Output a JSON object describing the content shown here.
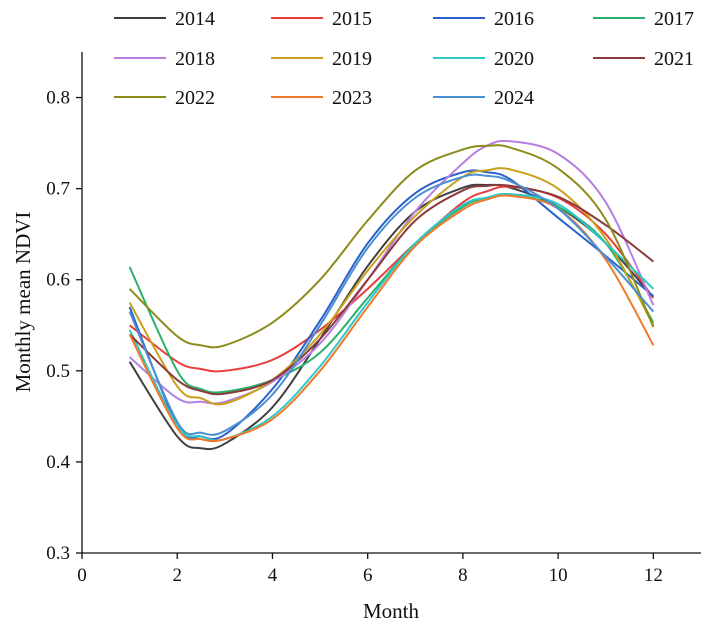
{
  "chart_data": {
    "type": "line",
    "title": "",
    "xlabel": "Month",
    "ylabel": "Monthly mean NDVI",
    "xlim": [
      0,
      13
    ],
    "ylim": [
      0.3,
      0.85
    ],
    "xticks": [
      0,
      2,
      4,
      6,
      8,
      10,
      12
    ],
    "yticks": [
      0.3,
      0.4,
      0.5,
      0.6,
      0.7,
      0.8
    ],
    "xtick_labels": [
      "0",
      "2",
      "4",
      "6",
      "8",
      "10",
      "12"
    ],
    "ytick_labels": [
      "0.3",
      "0.4",
      "0.5",
      "0.6",
      "0.7",
      "0.8"
    ],
    "grid": false,
    "legend_position": "top",
    "x": [
      1,
      2,
      2.5,
      3,
      4,
      5,
      6,
      7,
      8,
      8.5,
      9,
      10,
      11,
      12
    ],
    "series": [
      {
        "name": "2014",
        "color": "#404040",
        "values": [
          0.51,
          0.428,
          0.415,
          0.42,
          0.46,
          0.535,
          0.615,
          0.675,
          0.701,
          0.704,
          0.701,
          0.68,
          0.64,
          0.58
        ]
      },
      {
        "name": "2015",
        "color": "#e83e3e",
        "values": [
          0.55,
          0.51,
          0.502,
          0.5,
          0.512,
          0.545,
          0.59,
          0.64,
          0.685,
          0.697,
          0.702,
          0.69,
          0.65,
          0.58
        ]
      },
      {
        "name": "2016",
        "color": "#2a62c9",
        "values": [
          0.57,
          0.44,
          0.428,
          0.43,
          0.48,
          0.555,
          0.64,
          0.695,
          0.718,
          0.718,
          0.71,
          0.668,
          0.626,
          0.582
        ]
      },
      {
        "name": "2017",
        "color": "#2bb06b",
        "values": [
          0.614,
          0.5,
          0.48,
          0.477,
          0.49,
          0.52,
          0.58,
          0.64,
          0.68,
          0.69,
          0.693,
          0.68,
          0.64,
          0.553
        ]
      },
      {
        "name": "2018",
        "color": "#b77fe0",
        "values": [
          0.515,
          0.47,
          0.466,
          0.466,
          0.488,
          0.53,
          0.6,
          0.675,
          0.728,
          0.747,
          0.752,
          0.738,
          0.685,
          0.572
        ]
      },
      {
        "name": "2019",
        "color": "#c9a019",
        "values": [
          0.575,
          0.483,
          0.47,
          0.464,
          0.49,
          0.54,
          0.61,
          0.67,
          0.713,
          0.72,
          0.721,
          0.7,
          0.645,
          0.55
        ]
      },
      {
        "name": "2020",
        "color": "#2ec8c8",
        "values": [
          0.545,
          0.44,
          0.428,
          0.425,
          0.45,
          0.505,
          0.575,
          0.64,
          0.682,
          0.69,
          0.694,
          0.683,
          0.64,
          0.59
        ]
      },
      {
        "name": "2021",
        "color": "#8b3a3a",
        "values": [
          0.54,
          0.49,
          0.478,
          0.475,
          0.49,
          0.535,
          0.6,
          0.665,
          0.698,
          0.703,
          0.703,
          0.691,
          0.66,
          0.62
        ]
      },
      {
        "name": "2022",
        "color": "#8c8c1a",
        "values": [
          0.59,
          0.538,
          0.528,
          0.528,
          0.553,
          0.6,
          0.665,
          0.72,
          0.743,
          0.747,
          0.745,
          0.722,
          0.666,
          0.548
        ]
      },
      {
        "name": "2023",
        "color": "#f07a2a",
        "values": [
          0.54,
          0.437,
          0.425,
          0.425,
          0.447,
          0.5,
          0.57,
          0.637,
          0.677,
          0.688,
          0.692,
          0.678,
          0.622,
          0.528
        ]
      },
      {
        "name": "2024",
        "color": "#4a90d0",
        "values": [
          0.565,
          0.444,
          0.432,
          0.434,
          0.474,
          0.55,
          0.635,
          0.69,
          0.713,
          0.714,
          0.708,
          0.678,
          0.625,
          0.565
        ]
      }
    ]
  }
}
